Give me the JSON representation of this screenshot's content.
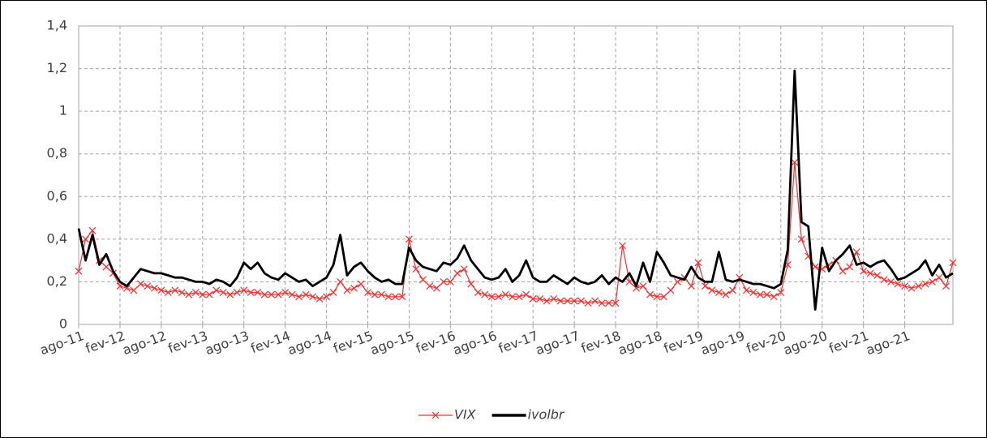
{
  "chart_data": {
    "type": "line",
    "categories": [
      "ago-11",
      null,
      null,
      null,
      null,
      null,
      "fev-12",
      null,
      null,
      null,
      null,
      null,
      "ago-12",
      null,
      null,
      null,
      null,
      null,
      "fev-13",
      null,
      null,
      null,
      null,
      null,
      "ago-13",
      null,
      null,
      null,
      null,
      null,
      "fev-14",
      null,
      null,
      null,
      null,
      null,
      "ago-14",
      null,
      null,
      null,
      null,
      null,
      "fev-15",
      null,
      null,
      null,
      null,
      null,
      "ago-15",
      null,
      null,
      null,
      null,
      null,
      "fev-16",
      null,
      null,
      null,
      null,
      null,
      "ago-16",
      null,
      null,
      null,
      null,
      null,
      "fev-17",
      null,
      null,
      null,
      null,
      null,
      "ago-17",
      null,
      null,
      null,
      null,
      null,
      "fev-18",
      null,
      null,
      null,
      null,
      null,
      "ago-18",
      null,
      null,
      null,
      null,
      null,
      "fev-19",
      null,
      null,
      null,
      null,
      null,
      "ago-19",
      null,
      null,
      null,
      null,
      null,
      "fev-20",
      null,
      null,
      null,
      null,
      null,
      "ago-20",
      null,
      null,
      null,
      null,
      null,
      "fev-21",
      null,
      null,
      null,
      null,
      null,
      "ago-21",
      null,
      null,
      null,
      null,
      null,
      null,
      null
    ],
    "series": [
      {
        "name": "VIX",
        "color": "#ff2a2a",
        "marker": "x",
        "values": [
          0.25,
          0.4,
          0.44,
          0.3,
          0.27,
          0.24,
          0.18,
          0.17,
          0.16,
          0.19,
          0.18,
          0.17,
          0.16,
          0.15,
          0.16,
          0.15,
          0.14,
          0.15,
          0.14,
          0.14,
          0.16,
          0.15,
          0.14,
          0.15,
          0.16,
          0.15,
          0.15,
          0.14,
          0.14,
          0.14,
          0.15,
          0.14,
          0.13,
          0.14,
          0.13,
          0.12,
          0.13,
          0.15,
          0.2,
          0.16,
          0.17,
          0.19,
          0.15,
          0.14,
          0.14,
          0.13,
          0.13,
          0.13,
          0.4,
          0.26,
          0.21,
          0.18,
          0.17,
          0.2,
          0.2,
          0.24,
          0.26,
          0.19,
          0.15,
          0.14,
          0.13,
          0.13,
          0.14,
          0.13,
          0.13,
          0.14,
          0.12,
          0.12,
          0.11,
          0.12,
          0.11,
          0.11,
          0.11,
          0.11,
          0.1,
          0.11,
          0.1,
          0.1,
          0.1,
          0.37,
          0.2,
          0.17,
          0.18,
          0.14,
          0.13,
          0.13,
          0.16,
          0.2,
          0.22,
          0.18,
          0.29,
          0.18,
          0.16,
          0.15,
          0.14,
          0.16,
          0.22,
          0.16,
          0.15,
          0.14,
          0.14,
          0.13,
          0.15,
          0.28,
          0.76,
          0.4,
          0.32,
          0.27,
          0.26,
          0.28,
          0.3,
          0.25,
          0.27,
          0.34,
          0.25,
          0.24,
          0.23,
          0.21,
          0.2,
          0.19,
          0.18,
          0.17,
          0.18,
          0.19,
          0.2,
          0.22,
          0.18,
          0.29
        ]
      },
      {
        "name": "ivolbr",
        "color": "#000000",
        "values": [
          0.45,
          0.3,
          0.42,
          0.28,
          0.33,
          0.25,
          0.2,
          0.18,
          0.22,
          0.26,
          0.25,
          0.24,
          0.24,
          0.23,
          0.22,
          0.22,
          0.21,
          0.2,
          0.2,
          0.19,
          0.21,
          0.2,
          0.18,
          0.22,
          0.29,
          0.26,
          0.29,
          0.24,
          0.22,
          0.21,
          0.24,
          0.22,
          0.2,
          0.21,
          0.18,
          0.2,
          0.22,
          0.28,
          0.42,
          0.23,
          0.27,
          0.29,
          0.25,
          0.22,
          0.2,
          0.21,
          0.19,
          0.19,
          0.36,
          0.3,
          0.27,
          0.26,
          0.25,
          0.29,
          0.28,
          0.31,
          0.37,
          0.3,
          0.26,
          0.22,
          0.21,
          0.22,
          0.26,
          0.2,
          0.23,
          0.3,
          0.22,
          0.2,
          0.2,
          0.23,
          0.21,
          0.19,
          0.22,
          0.2,
          0.19,
          0.2,
          0.23,
          0.19,
          0.22,
          0.2,
          0.24,
          0.18,
          0.29,
          0.2,
          0.34,
          0.29,
          0.23,
          0.22,
          0.21,
          0.27,
          0.22,
          0.2,
          0.2,
          0.34,
          0.21,
          0.2,
          0.21,
          0.2,
          0.19,
          0.19,
          0.18,
          0.17,
          0.19,
          0.35,
          1.19,
          0.48,
          0.46,
          0.07,
          0.36,
          0.25,
          0.3,
          0.33,
          0.37,
          0.28,
          0.29,
          0.27,
          0.29,
          0.3,
          0.26,
          0.21,
          0.22,
          0.24,
          0.26,
          0.3,
          0.23,
          0.28,
          0.22,
          0.24
        ]
      }
    ],
    "ylim": [
      0,
      1.4
    ],
    "yticks": [
      0,
      {
        "value": 0.2,
        "label": "0,2"
      },
      {
        "value": 0.4,
        "label": "0,4"
      },
      {
        "value": 0.6,
        "label": "0,6"
      },
      {
        "value": 0.8,
        "label": "0,8"
      },
      1,
      {
        "value": 1.2,
        "label": "1,2"
      },
      {
        "value": 1.4,
        "label": "1,4"
      }
    ],
    "grid": true,
    "legend": "bottom"
  }
}
